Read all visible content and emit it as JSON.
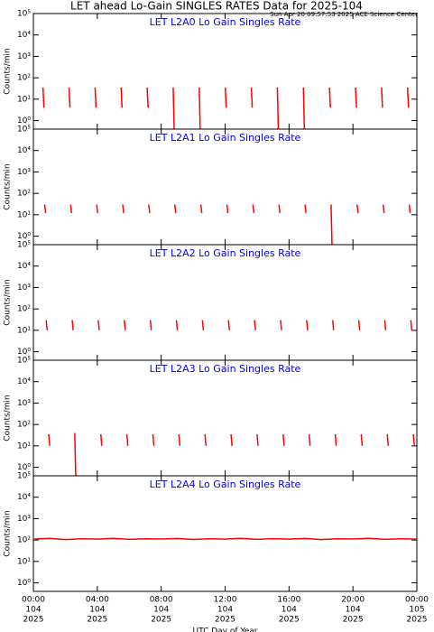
{
  "header": {
    "title": "LET ahead Lo-Gain SINGLES RATES Data for 2025-104",
    "timestamp": "Sun Apr 20 09:57:53 2025 ACE Science Center"
  },
  "chart_data": [
    {
      "type": "line",
      "title": "LET L2A0 Lo Gain Singles Rate",
      "ylabel": "Counts/min",
      "log_y": true,
      "xlim": [
        0,
        24
      ],
      "ylim": [
        0.4,
        100000
      ],
      "xticks": [
        0,
        4,
        8,
        12,
        16,
        20,
        24
      ],
      "yticks": [
        {
          "value": 1,
          "label": "10⁰"
        },
        {
          "value": 10,
          "label": "10¹"
        },
        {
          "value": 100,
          "label": "10²"
        },
        {
          "value": 1000,
          "label": "10³"
        },
        {
          "value": 10000,
          "label": "10⁴"
        },
        {
          "value": 100000,
          "label": "10⁵"
        }
      ],
      "series": [
        {
          "color": "#ff0000",
          "x": [
            0.6,
            0.66,
            0.67,
            2.23,
            2.29,
            2.3,
            3.86,
            3.92,
            3.93,
            5.49,
            5.55,
            5.56,
            7.12,
            7.18,
            7.19,
            8.75,
            8.81,
            8.82,
            10.38,
            10.44,
            10.45,
            12.01,
            12.07,
            12.08,
            13.64,
            13.7,
            13.71,
            15.27,
            15.33,
            15.34,
            16.9,
            16.96,
            16.97,
            18.53,
            18.59,
            18.6,
            20.16,
            20.22,
            20.23,
            21.79,
            21.85,
            21.86,
            23.42,
            23.48,
            23.49
          ],
          "values": [
            35,
            4,
            null,
            35,
            4,
            null,
            35,
            4,
            null,
            35,
            4,
            null,
            35,
            4,
            null,
            35,
            0.4,
            null,
            35,
            0.4,
            null,
            35,
            4,
            null,
            35,
            4,
            null,
            35,
            0.4,
            null,
            35,
            0.4,
            null,
            35,
            4,
            null,
            35,
            4,
            null,
            35,
            4,
            null,
            35,
            4,
            null
          ]
        }
      ]
    },
    {
      "type": "line",
      "title": "LET L2A1 Lo Gain Singles Rate",
      "ylabel": "Counts/min",
      "log_y": true,
      "xlim": [
        0,
        24
      ],
      "ylim": [
        0.4,
        100000
      ],
      "xticks": [
        0,
        4,
        8,
        12,
        16,
        20,
        24
      ],
      "yticks": [
        {
          "value": 1,
          "label": "10⁰"
        },
        {
          "value": 10,
          "label": "10¹"
        },
        {
          "value": 100,
          "label": "10²"
        },
        {
          "value": 1000,
          "label": "10³"
        },
        {
          "value": 10000,
          "label": "10⁴"
        },
        {
          "value": 100000,
          "label": "10⁵"
        }
      ],
      "series": [
        {
          "color": "#ff0000",
          "x": [
            0.7,
            0.76,
            0.77,
            2.33,
            2.39,
            2.4,
            3.96,
            4.02,
            4.03,
            5.59,
            5.65,
            5.66,
            7.22,
            7.28,
            7.29,
            8.85,
            8.91,
            8.92,
            10.48,
            10.54,
            10.55,
            12.11,
            12.17,
            12.18,
            13.74,
            13.8,
            13.81,
            15.37,
            15.43,
            15.44,
            17.0,
            17.06,
            17.07,
            18.63,
            18.69,
            18.7,
            20.26,
            20.32,
            20.33,
            21.89,
            21.95,
            21.96,
            23.52,
            23.58,
            23.59
          ],
          "values": [
            30,
            12,
            null,
            30,
            12,
            null,
            30,
            12,
            null,
            30,
            12,
            null,
            30,
            12,
            null,
            30,
            12,
            null,
            30,
            12,
            null,
            30,
            12,
            null,
            30,
            12,
            null,
            30,
            12,
            null,
            30,
            12,
            null,
            30,
            0.4,
            null,
            30,
            12,
            null,
            30,
            12,
            null,
            30,
            12,
            null
          ]
        }
      ]
    },
    {
      "type": "line",
      "title": "LET L2A2 Lo Gain Singles Rate",
      "ylabel": "Counts/min",
      "log_y": true,
      "xlim": [
        0,
        24
      ],
      "ylim": [
        0.4,
        100000
      ],
      "xticks": [
        0,
        4,
        8,
        12,
        16,
        20,
        24
      ],
      "yticks": [
        {
          "value": 1,
          "label": "10⁰"
        },
        {
          "value": 10,
          "label": "10¹"
        },
        {
          "value": 100,
          "label": "10²"
        },
        {
          "value": 1000,
          "label": "10³"
        },
        {
          "value": 10000,
          "label": "10⁴"
        },
        {
          "value": 100000,
          "label": "10⁵"
        }
      ],
      "series": [
        {
          "color": "#ff0000",
          "x": [
            0.8,
            0.86,
            0.87,
            2.43,
            2.49,
            2.5,
            4.06,
            4.12,
            4.13,
            5.69,
            5.75,
            5.76,
            7.32,
            7.38,
            7.39,
            8.95,
            9.01,
            9.02,
            10.58,
            10.64,
            10.65,
            12.21,
            12.27,
            12.28,
            13.84,
            13.9,
            13.91,
            15.47,
            15.53,
            15.54,
            17.1,
            17.16,
            17.17,
            18.73,
            18.79,
            18.8,
            20.36,
            20.42,
            20.43,
            21.99,
            22.05,
            22.06,
            23.62,
            23.68,
            23.69
          ],
          "values": [
            30,
            10,
            null,
            30,
            10,
            null,
            30,
            10,
            null,
            30,
            10,
            null,
            30,
            10,
            null,
            30,
            10,
            null,
            30,
            10,
            null,
            30,
            10,
            null,
            30,
            10,
            null,
            30,
            10,
            null,
            30,
            10,
            null,
            30,
            10,
            null,
            30,
            10,
            null,
            30,
            10,
            null,
            30,
            10,
            null
          ]
        }
      ]
    },
    {
      "type": "line",
      "title": "LET L2A3 Lo Gain Singles Rate",
      "ylabel": "Counts/min",
      "log_y": true,
      "xlim": [
        0,
        24
      ],
      "ylim": [
        0.4,
        100000
      ],
      "xticks": [
        0,
        4,
        8,
        12,
        16,
        20,
        24
      ],
      "yticks": [
        {
          "value": 1,
          "label": "10⁰"
        },
        {
          "value": 10,
          "label": "10¹"
        },
        {
          "value": 100,
          "label": "10²"
        },
        {
          "value": 1000,
          "label": "10³"
        },
        {
          "value": 10000,
          "label": "10⁴"
        },
        {
          "value": 100000,
          "label": "10⁵"
        }
      ],
      "series": [
        {
          "color": "#ff0000",
          "x": [
            0.96,
            1.02,
            1.03,
            2.59,
            2.65,
            2.66,
            4.22,
            4.28,
            4.29,
            5.85,
            5.91,
            5.92,
            7.48,
            7.54,
            7.55,
            9.11,
            9.17,
            9.18,
            10.74,
            10.8,
            10.81,
            12.37,
            12.43,
            12.44,
            14.0,
            14.06,
            14.07,
            15.63,
            15.69,
            15.7,
            17.26,
            17.32,
            17.33,
            18.89,
            18.95,
            18.96,
            20.52,
            20.58,
            20.59,
            22.15,
            22.21,
            22.22,
            23.78,
            23.84,
            23.85
          ],
          "values": [
            35,
            10,
            null,
            40,
            0.4,
            null,
            35,
            10,
            null,
            35,
            10,
            null,
            35,
            10,
            null,
            35,
            10,
            null,
            35,
            10,
            null,
            35,
            10,
            null,
            35,
            10,
            null,
            35,
            10,
            null,
            35,
            10,
            null,
            35,
            10,
            null,
            35,
            10,
            null,
            35,
            10,
            null,
            35,
            10,
            null
          ]
        }
      ]
    },
    {
      "type": "line",
      "title": "LET L2A4 Lo Gain Singles Rate",
      "ylabel": "Counts/min",
      "log_y": true,
      "xlabel": "UTC Day of Year",
      "xlim": [
        0,
        24
      ],
      "ylim": [
        0.4,
        100000
      ],
      "xticks": [
        {
          "value": 0,
          "label": "00:00"
        },
        {
          "value": 4,
          "label": "04:00"
        },
        {
          "value": 8,
          "label": "08:00"
        },
        {
          "value": 12,
          "label": "12:00"
        },
        {
          "value": 16,
          "label": "16:00"
        },
        {
          "value": 20,
          "label": "20:00"
        },
        {
          "value": 24,
          "label": "00:00"
        }
      ],
      "xtick_days": [
        "104",
        "104",
        "104",
        "104",
        "104",
        "104",
        "105"
      ],
      "xtick_years": [
        "2025",
        "2025",
        "2025",
        "2025",
        "2025",
        "2025",
        "2025"
      ],
      "yticks": [
        {
          "value": 1,
          "label": "10⁰"
        },
        {
          "value": 10,
          "label": "10¹"
        },
        {
          "value": 100,
          "label": "10²"
        },
        {
          "value": 1000,
          "label": "10³"
        },
        {
          "value": 10000,
          "label": "10⁴"
        },
        {
          "value": 100000,
          "label": "10⁵"
        }
      ],
      "series": [
        {
          "color": "#ff0000",
          "x": [
            0,
            1,
            2,
            3,
            4,
            5,
            6,
            7,
            8,
            9,
            10,
            11,
            12,
            13,
            14,
            15,
            16,
            17,
            18,
            19,
            20,
            21,
            22,
            23,
            24
          ],
          "values": [
            110,
            120,
            105,
            115,
            110,
            120,
            108,
            115,
            112,
            118,
            106,
            114,
            110,
            120,
            108,
            116,
            110,
            118,
            105,
            115,
            112,
            120,
            108,
            114,
            110
          ]
        }
      ]
    }
  ]
}
